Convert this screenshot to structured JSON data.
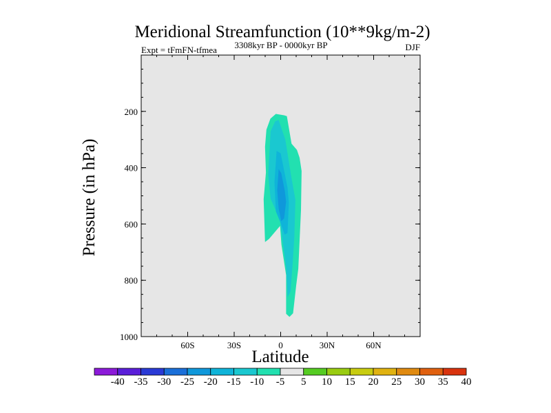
{
  "chart_data": {
    "type": "contour",
    "title": "Meridional Streamfunction (10**9kg/m-2)",
    "left_label": "Expt = tFmFN-tfmea",
    "center_label": "3308kyr BP - 0000kyr BP",
    "right_label": "DJF",
    "xlabel": "Latitude",
    "ylabel": "Pressure (in hPa)",
    "xlim": [
      -90,
      90
    ],
    "ylim": [
      0,
      1000
    ],
    "y_inverted": true,
    "x_major_ticks": [
      -60,
      -30,
      0,
      30,
      60
    ],
    "x_tick_labels": [
      "60S",
      "30S",
      "0",
      "30N",
      "60N"
    ],
    "x_minor_step": 10,
    "y_major_ticks": [
      200,
      400,
      600,
      800,
      1000
    ],
    "y_tick_labels": [
      "200",
      "400",
      "600",
      "800",
      "1000"
    ],
    "y_minor_step": 50,
    "plot_background": "#e6e6e6",
    "colorbar": {
      "levels": [
        -40,
        -35,
        -30,
        -25,
        -20,
        -15,
        -10,
        -5,
        5,
        10,
        15,
        20,
        25,
        30,
        35,
        40
      ],
      "labels": [
        "-40",
        "-35",
        "-30",
        "-25",
        "-20",
        "-15",
        "-10",
        "-5",
        "5",
        "10",
        "15",
        "20",
        "25",
        "30",
        "35",
        "40"
      ],
      "colors": [
        "#8c1ad9",
        "#5a1ed9",
        "#2a3ad6",
        "#1a6fd9",
        "#0f98db",
        "#0fb4d9",
        "#1ac8d0",
        "#22e0b0",
        "#e6e6e6",
        "#55cc22",
        "#99cc11",
        "#c8cc10",
        "#e0b210",
        "#e08a10",
        "#e0600f",
        "#d9330e"
      ]
    },
    "regions": [
      {
        "level": "-10 to -5",
        "color": "#22e0b0",
        "points": [
          [
            -6.6,
            226
          ],
          [
            -3.1,
            209
          ],
          [
            2.2,
            214
          ],
          [
            4.0,
            217
          ],
          [
            7.0,
            315
          ],
          [
            10.5,
            337
          ],
          [
            12.2,
            365
          ],
          [
            13.5,
            412
          ],
          [
            13.1,
            551
          ],
          [
            11.4,
            759
          ],
          [
            10.0,
            819
          ],
          [
            8.0,
            917
          ],
          [
            5.7,
            930
          ],
          [
            3.5,
            919
          ],
          [
            3.5,
            782
          ],
          [
            0.5,
            673
          ],
          [
            -0.4,
            607
          ],
          [
            -7.5,
            653
          ],
          [
            -10.1,
            664
          ],
          [
            -11.0,
            512
          ],
          [
            -9.5,
            417
          ],
          [
            -10.1,
            326
          ],
          [
            -9.2,
            265
          ]
        ]
      },
      {
        "level": "-15 to -10",
        "color": "#1ac8d0",
        "points": [
          [
            -6.5,
            271
          ],
          [
            -3.5,
            235
          ],
          [
            -1.3,
            231
          ],
          [
            3.0,
            301
          ],
          [
            6.6,
            425
          ],
          [
            9.5,
            515
          ],
          [
            8.8,
            647
          ],
          [
            7.6,
            751
          ],
          [
            6.3,
            840
          ],
          [
            4.5,
            860
          ],
          [
            3.5,
            755
          ],
          [
            -0.5,
            585
          ],
          [
            -6.5,
            510
          ],
          [
            -8.0,
            425
          ]
        ]
      },
      {
        "level": "-20 to -15",
        "color": "#0fb4d9",
        "points": [
          [
            -2.6,
            340
          ],
          [
            0.0,
            349
          ],
          [
            2.6,
            420
          ],
          [
            4.4,
            470
          ],
          [
            5.3,
            525
          ],
          [
            4.4,
            632
          ],
          [
            2.6,
            638
          ],
          [
            -0.4,
            591
          ],
          [
            -3.1,
            555
          ],
          [
            -4.0,
            451
          ]
        ]
      },
      {
        "level": "-25 to -20",
        "color": "#0f98db",
        "points": [
          [
            -1.3,
            405
          ],
          [
            0.4,
            420
          ],
          [
            2.6,
            480
          ],
          [
            3.5,
            520
          ],
          [
            2.2,
            580
          ],
          [
            0.4,
            590
          ],
          [
            -1.3,
            545
          ],
          [
            -2.2,
            480
          ]
        ]
      }
    ]
  }
}
